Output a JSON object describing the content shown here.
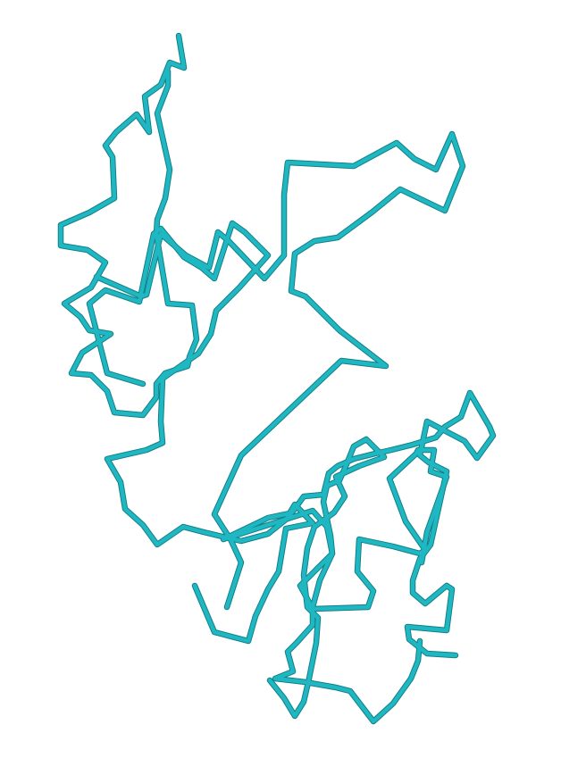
{
  "figure": {
    "kind": "protein-backbone-trace",
    "colors": {
      "background": "#ffffff",
      "stroke_main": "#1fb8c2",
      "stroke_shadow": "#127f86"
    }
  }
}
